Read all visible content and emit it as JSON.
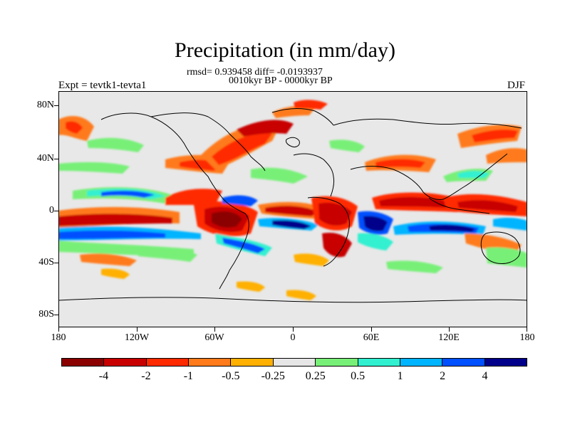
{
  "title": "Precipitation (in mm/day)",
  "stats": "rmsd= 0.939458 diff= -0.0193937",
  "period": "0010kyr BP - 0000kyr BP",
  "left_label": "Expt = tevtk1-tevta1",
  "right_label": "DJF",
  "lat_labels": [
    "80N",
    "40N",
    "0",
    "40S",
    "80S"
  ],
  "lon_labels": [
    "180",
    "120W",
    "60W",
    "0",
    "60E",
    "120E",
    "180"
  ],
  "colorbar": {
    "labels": [
      "-4",
      "-2",
      "-1",
      "-0.5",
      "-0.25",
      "0.25",
      "0.5",
      "1",
      "2",
      "4"
    ],
    "colors": [
      "#8b0000",
      "#c80000",
      "#ff2a00",
      "#ff7a1a",
      "#ffb000",
      "#e6e6e6",
      "#78f078",
      "#30f0d0",
      "#00b4ff",
      "#0050ff",
      "#00008b"
    ]
  }
}
